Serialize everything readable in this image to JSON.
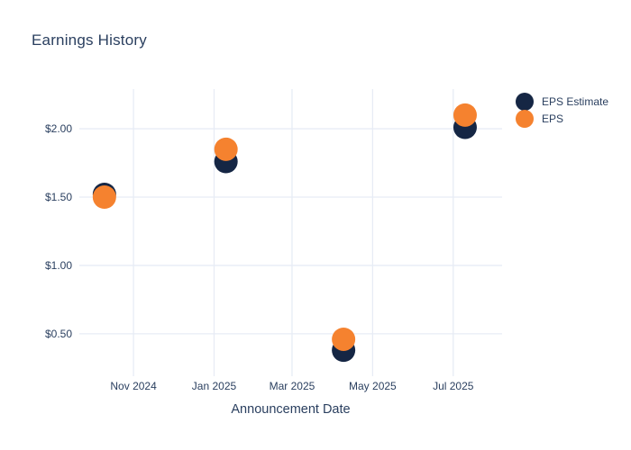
{
  "title": "Earnings History",
  "colors": {
    "background": "#ffffff",
    "text": "#2a3f5f",
    "grid": "#e7ecf5",
    "eps_estimate": "#152644",
    "eps": "#f5822f"
  },
  "chart_data": {
    "type": "scatter",
    "title": "Earnings History",
    "xlabel": "Announcement Date",
    "ylabel": "",
    "grid": true,
    "legend_position": "right-outside-top",
    "x_range": [
      "2024-09-21",
      "2025-08-07"
    ],
    "ylim": [
      0.19,
      2.29
    ],
    "x_ticks": [
      {
        "date": "2024-11-01",
        "label": "Nov 2024"
      },
      {
        "date": "2025-01-01",
        "label": "Jan 2025"
      },
      {
        "date": "2025-03-01",
        "label": "Mar 2025"
      },
      {
        "date": "2025-05-01",
        "label": "May 2025"
      },
      {
        "date": "2025-07-01",
        "label": "Jul 2025"
      }
    ],
    "y_ticks": [
      {
        "value": 0.5,
        "label": "$0.50"
      },
      {
        "value": 1.0,
        "label": "$1.00"
      },
      {
        "value": 1.5,
        "label": "$1.50"
      },
      {
        "value": 2.0,
        "label": "$2.00"
      }
    ],
    "series": [
      {
        "name": "EPS Estimate",
        "color": "#152644",
        "marker_diameter": 26,
        "points": [
          {
            "date": "2024-10-10",
            "value": 1.52
          },
          {
            "date": "2025-01-10",
            "value": 1.76
          },
          {
            "date": "2025-04-09",
            "value": 0.38
          },
          {
            "date": "2025-07-10",
            "value": 2.01
          }
        ]
      },
      {
        "name": "EPS",
        "color": "#f5822f",
        "marker_diameter": 26,
        "points": [
          {
            "date": "2024-10-10",
            "value": 1.5
          },
          {
            "date": "2025-01-10",
            "value": 1.85
          },
          {
            "date": "2025-04-09",
            "value": 0.46
          },
          {
            "date": "2025-07-10",
            "value": 2.1
          }
        ]
      }
    ]
  }
}
